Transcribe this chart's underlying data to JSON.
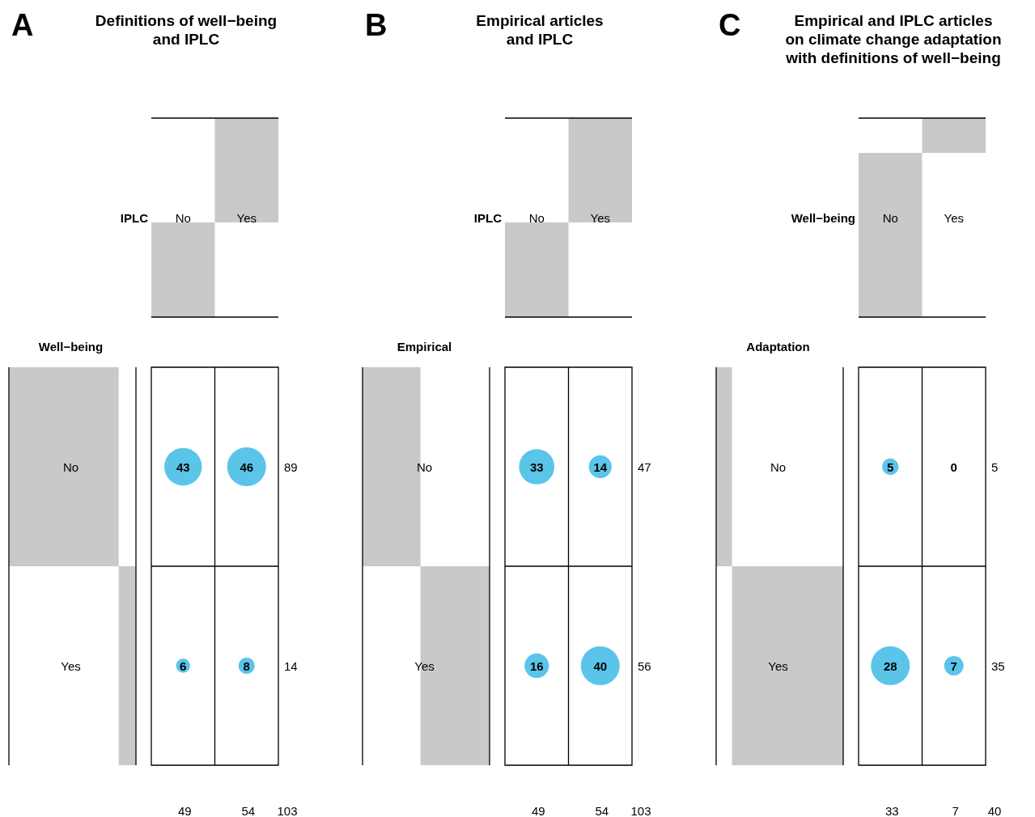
{
  "chart_data": [
    {
      "type": "heatmap",
      "title": "Definitions of well−being\nand IPLC",
      "xlabel": "IPLC",
      "ylabel": "Well−being",
      "categories": [
        "No",
        "Yes"
      ],
      "y_categories": [
        "No",
        "Yes"
      ],
      "cells": [
        [
          43,
          46
        ],
        [
          6,
          8
        ]
      ],
      "color": "#5bc5e9",
      "data_labels": true,
      "grid": true,
      "totals": [
        "89",
        "14",
        "49",
        "54",
        "103"
      ],
      "annotations": [
        "A"
      ]
    },
    {
      "type": "heatmap",
      "title": "Empirical articles\nand IPLC",
      "xlabel": "IPLC",
      "ylabel": "Empirical",
      "categories": [
        "No",
        "Yes"
      ],
      "y_categories": [
        "No",
        "Yes"
      ],
      "cells": [
        [
          33,
          14
        ],
        [
          16,
          40
        ]
      ],
      "color": "#5bc5e9",
      "data_labels": true,
      "grid": true,
      "totals": [
        "47",
        "56",
        "49",
        "54",
        "103"
      ],
      "annotations": [
        "B"
      ]
    },
    {
      "type": "heatmap",
      "title": "Empirical and IPLC articles\non climate change adaptation\nwith definitions of well−being",
      "xlabel": "Well−being",
      "ylabel": "Adaptation",
      "categories": [
        "No",
        "Yes"
      ],
      "y_categories": [
        "No",
        "Yes"
      ],
      "cells": [
        [
          5,
          0
        ],
        [
          28,
          7
        ]
      ],
      "color": "#5bc5e9",
      "data_labels": true,
      "grid": true,
      "totals": [
        "5",
        "35",
        "33",
        "7",
        "40"
      ],
      "annotations": [
        "C"
      ]
    }
  ]
}
